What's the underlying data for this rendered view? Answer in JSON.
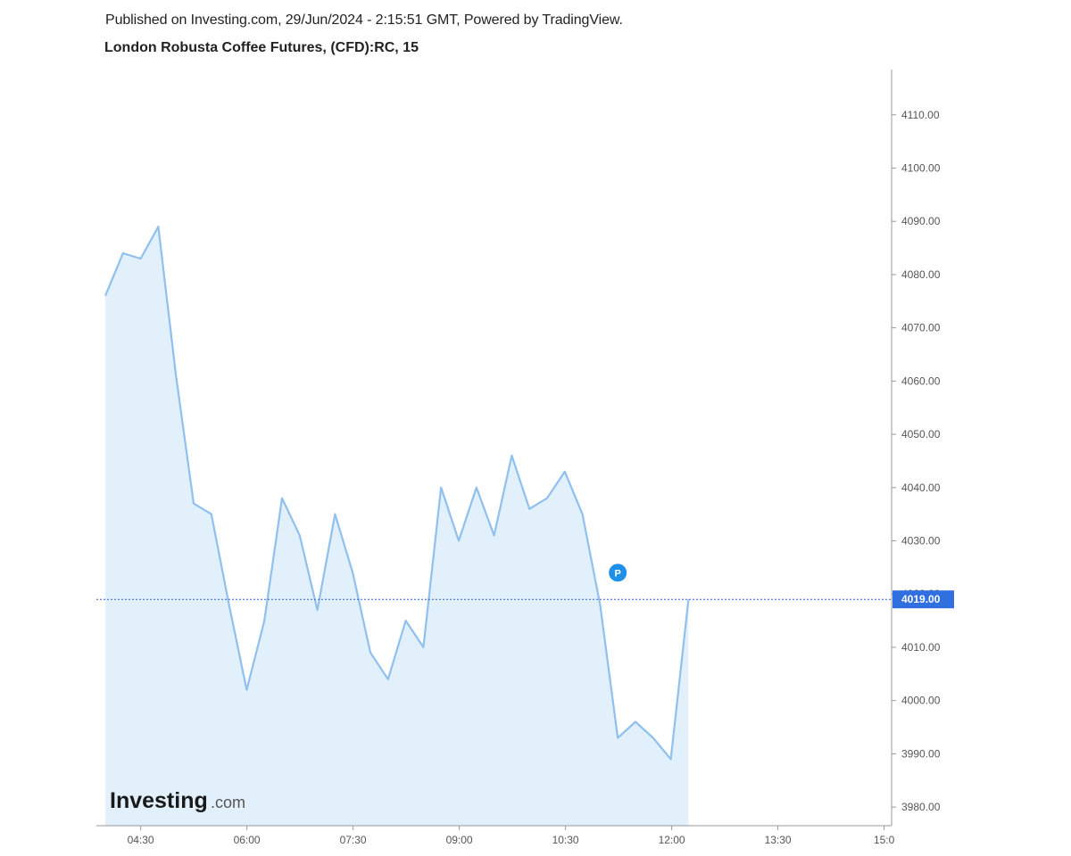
{
  "header": {
    "published_line": "Published on Investing.com, 29/Jun/2024 - 2:15:51 GMT, Powered by TradingView.",
    "title": "London Robusta Coffee Futures, (CFD):RC, 15"
  },
  "logo": {
    "brand": "Investing",
    "suffix": ".com"
  },
  "marker": {
    "label": "P",
    "x": "11:15",
    "y": 4024
  },
  "last_price": {
    "value": 4019,
    "label": "4019.00"
  },
  "colors": {
    "line": "#8fc0ee",
    "area": "#e2f0fb",
    "price_line": "#2a62d6",
    "price_badge": "#2f6fe0",
    "marker": "#1e90ea",
    "axis": "#999999"
  },
  "chart_data": {
    "type": "area",
    "title": "London Robusta Coffee Futures, (CFD):RC, 15",
    "x": [
      "04:00",
      "04:15",
      "04:30",
      "04:45",
      "05:00",
      "05:15",
      "05:30",
      "05:45",
      "06:00",
      "06:15",
      "06:30",
      "06:45",
      "07:00",
      "07:15",
      "07:30",
      "07:45",
      "08:00",
      "08:15",
      "08:30",
      "08:45",
      "09:00",
      "09:15",
      "09:30",
      "09:45",
      "10:00",
      "10:15",
      "10:30",
      "10:45",
      "11:00",
      "11:15",
      "11:30",
      "11:45",
      "12:00",
      "12:15"
    ],
    "series": [
      {
        "values": [
          4076,
          4084,
          4083,
          4089,
          4061,
          4037,
          4035,
          4018,
          4002,
          4015,
          4038,
          4031,
          4017,
          4035,
          4024,
          4009,
          4004,
          4015,
          4010,
          4040,
          4030,
          4040,
          4031,
          4046,
          4036,
          4038,
          4043,
          4035,
          4018,
          3993,
          3996,
          3993,
          3989,
          4019
        ]
      }
    ],
    "x_ticks": [
      "04:30",
      "06:00",
      "07:30",
      "09:00",
      "10:30",
      "12:00",
      "13:30",
      "15:0"
    ],
    "y_ticks": [
      "3980.00",
      "3990.00",
      "4000.00",
      "4010.00",
      "4020.00",
      "4030.00",
      "4040.00",
      "4050.00",
      "4060.00",
      "4070.00",
      "4080.00",
      "4090.00",
      "4100.00",
      "4110.00"
    ],
    "ylim": [
      3976.5,
      4118.5
    ],
    "y_axis_position": "right",
    "grid": false
  }
}
